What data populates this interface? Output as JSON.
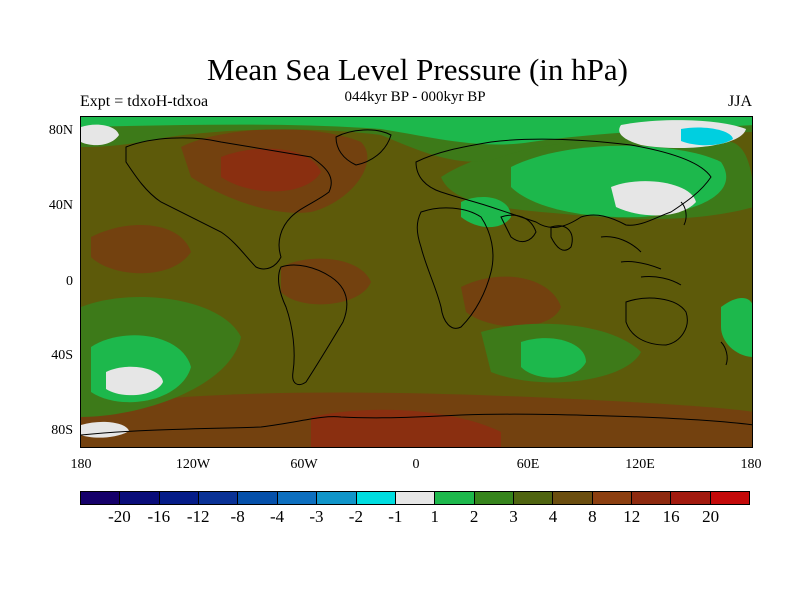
{
  "title": "Mean Sea Level Pressure (in hPa)",
  "subtitle": "044kyr BP - 000kyr BP",
  "left_label": "Expt = tdxoH-tdxoa",
  "right_label": "JJA",
  "lat_ticks": [
    "80N",
    "40N",
    "0",
    "40S",
    "80S"
  ],
  "lon_ticks": [
    "180",
    "120W",
    "60W",
    "0",
    "60E",
    "120E",
    "180"
  ],
  "colorbar": {
    "colors": [
      "#15006a",
      "#0a0d7a",
      "#051c88",
      "#0a3296",
      "#0550aa",
      "#0d6fbf",
      "#1095c9",
      "#00dde0",
      "#e6e6e6",
      "#1db84c",
      "#36841c",
      "#4f6410",
      "#6b4e0f",
      "#8c3f10",
      "#8e2a0f",
      "#a21a0e",
      "#c40a0a"
    ],
    "labels": [
      "-20",
      "-16",
      "-12",
      "-8",
      "-4",
      "-3",
      "-2",
      "-1",
      "1",
      "2",
      "3",
      "4",
      "8",
      "12",
      "16",
      "20"
    ]
  },
  "palette": {
    "bg": "#5d5a0a",
    "brown": "#73410f",
    "darkbrown": "#8a2f10",
    "olive": "#3d7a19",
    "green": "#1db84c",
    "white": "#e6e6e6",
    "cyan": "#00cfe0"
  }
}
